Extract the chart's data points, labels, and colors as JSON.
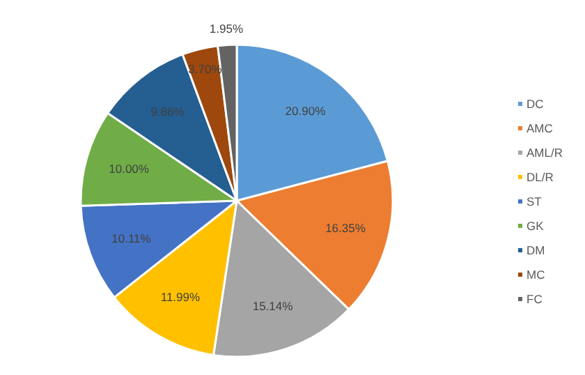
{
  "chart_data": {
    "type": "pie",
    "categories": [
      "DC",
      "AMC",
      "AML/R",
      "DL/R",
      "ST",
      "GK",
      "DM",
      "MC",
      "FC"
    ],
    "values": [
      20.9,
      16.35,
      15.14,
      11.99,
      10.11,
      10.0,
      9.86,
      3.7,
      1.95
    ],
    "value_labels": [
      "20.90%",
      "16.35%",
      "15.14%",
      "11.99%",
      "10.11%",
      "10.00%",
      "9.86%",
      "3.70%",
      "1.95%"
    ],
    "colors": [
      "#5b9bd5",
      "#ed7d31",
      "#a5a5a5",
      "#ffc000",
      "#4472c4",
      "#70ad47",
      "#255e91",
      "#9e480e",
      "#636363"
    ],
    "legend": "right"
  }
}
